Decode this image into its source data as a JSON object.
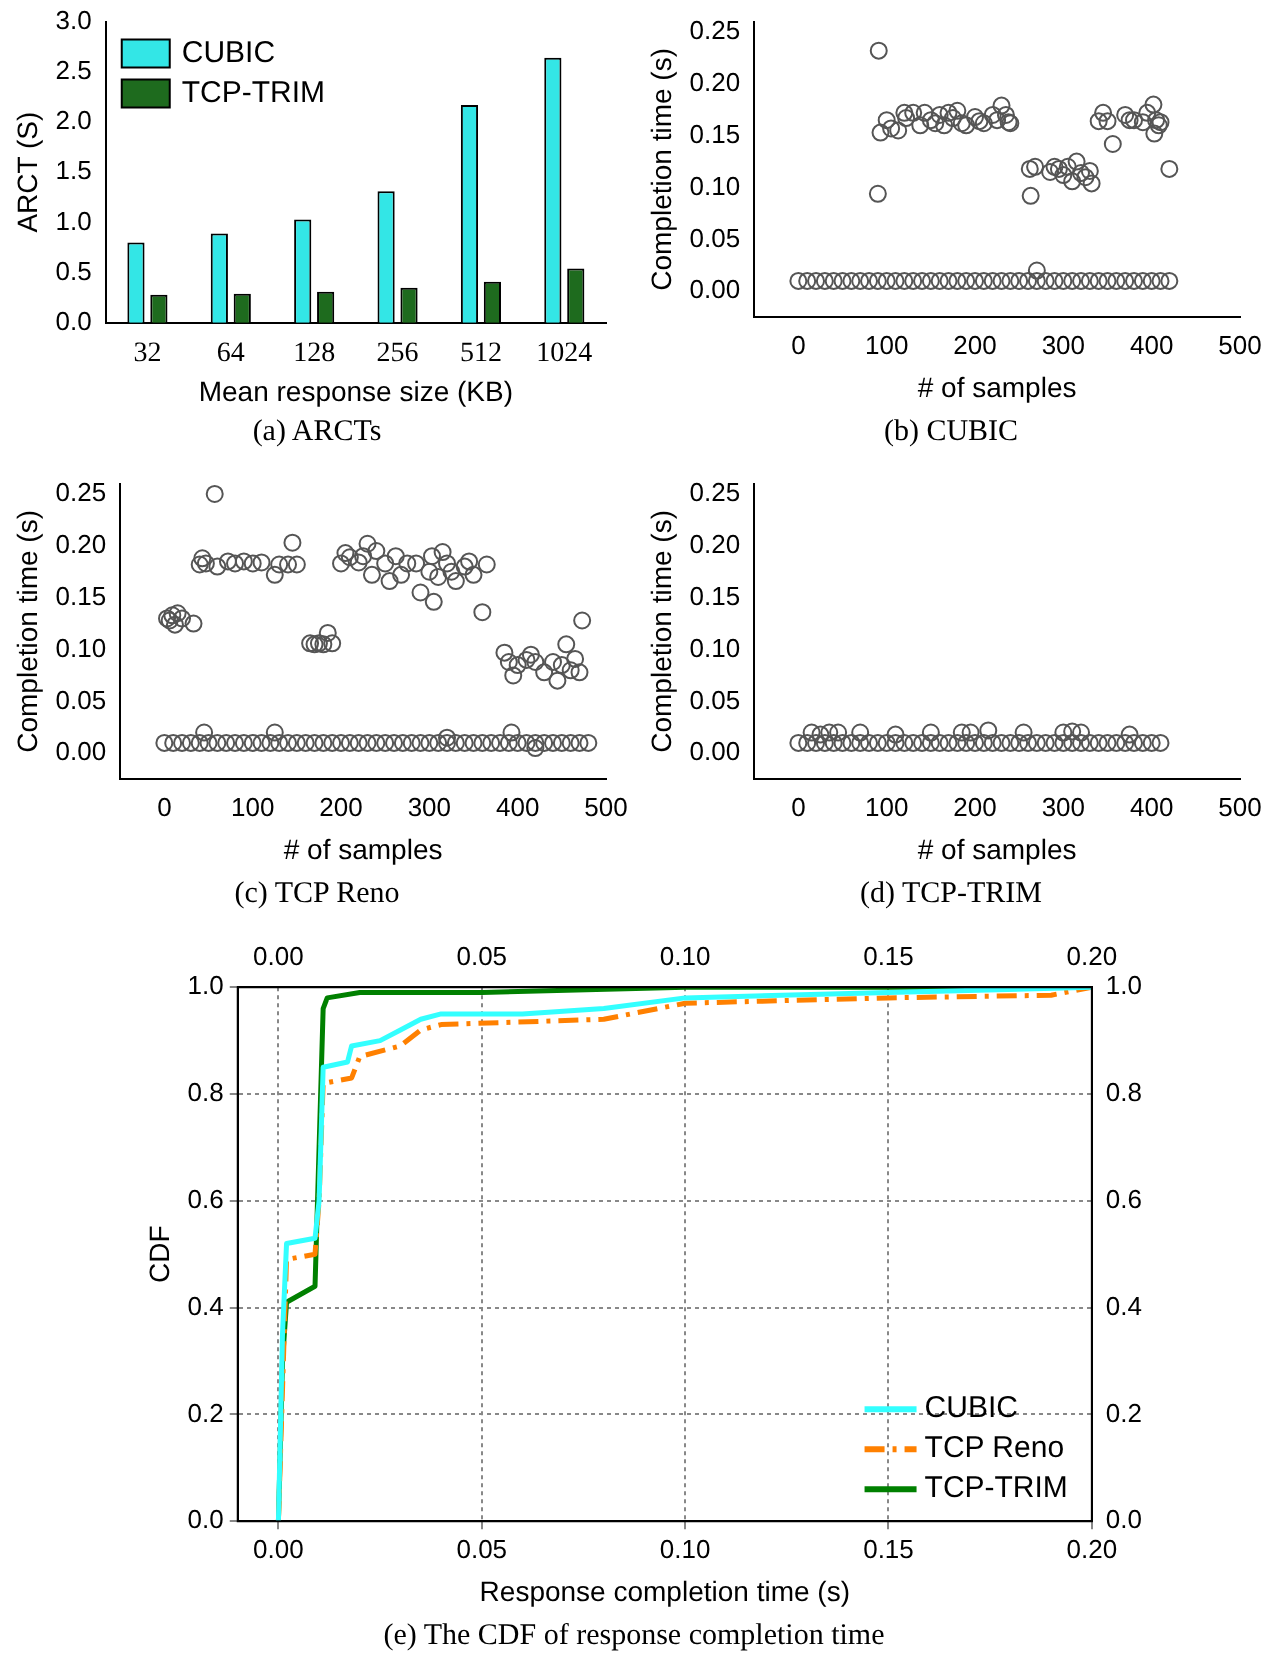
{
  "chart_data": [
    {
      "type": "bar",
      "categories": [
        "32",
        "64",
        "128",
        "256",
        "512",
        "1024"
      ],
      "xlabel": "Mean response size (KB)",
      "ylabel": "ARCT (S)",
      "ylim": [
        0,
        3
      ],
      "yticks": [
        {
          "value": 0,
          "label": "0.0"
        },
        0.5,
        {
          "value": 1,
          "label": "1.0"
        },
        1.5,
        {
          "value": 2,
          "label": "2.0"
        },
        2.5,
        {
          "value": 3,
          "label": "3.0"
        }
      ],
      "legend": "top left",
      "annotations": [
        "(a)  ARCTs"
      ],
      "series": [
        {
          "name": "CUBIC",
          "color": "#33e6e6",
          "values": [
            0.8,
            0.89,
            1.03,
            1.31,
            2.17,
            2.64
          ]
        },
        {
          "name": "TCP-TRIM",
          "color": "#1e6b1e",
          "values": [
            0.28,
            0.29,
            0.31,
            0.35,
            0.41,
            0.54
          ]
        }
      ]
    },
    {
      "type": "scatter",
      "xlabel": "# of samples",
      "ylabel": "Completion time (s)",
      "xlim": [
        -50,
        500
      ],
      "xticks": [
        0,
        100,
        200,
        300,
        400,
        500
      ],
      "ylim": [
        -0.025,
        0.26
      ],
      "yticks": [
        {
          "value": 0,
          "label": "0.00"
        },
        0.05,
        {
          "value": 0.1,
          "label": "0.10"
        },
        0.15,
        {
          "value": 0.2,
          "label": "0.20"
        },
        0.25
      ],
      "marker": "circle",
      "annotations": [
        "(b)  CUBIC"
      ],
      "series": [
        {
          "color": "#555555",
          "x": [
            0,
            10,
            20,
            30,
            40,
            50,
            60,
            70,
            80,
            90,
            100,
            110,
            120,
            130,
            140,
            150,
            160,
            170,
            180,
            190,
            200,
            210,
            220,
            230,
            240,
            250,
            260,
            270,
            280,
            290,
            300,
            310,
            320,
            330,
            340,
            350,
            360,
            370,
            380,
            390,
            400,
            410,
            420,
            91,
            90,
            93,
            100,
            105,
            113,
            120,
            122,
            130,
            138,
            143,
            150,
            155,
            160,
            165,
            170,
            175,
            180,
            185,
            190,
            200,
            205,
            210,
            220,
            225,
            230,
            235,
            238,
            240,
            262,
            263,
            268,
            270,
            285,
            290,
            295,
            300,
            305,
            310,
            315,
            320,
            325,
            330,
            332,
            340,
            345,
            350,
            356,
            370,
            375,
            380,
            390,
            395,
            402,
            403,
            405,
            408,
            410,
            420
          ],
          "values": [
            0.01,
            0.01,
            0.01,
            0.01,
            0.01,
            0.01,
            0.01,
            0.01,
            0.01,
            0.01,
            0.01,
            0.01,
            0.01,
            0.01,
            0.01,
            0.01,
            0.01,
            0.01,
            0.01,
            0.01,
            0.01,
            0.01,
            0.01,
            0.01,
            0.01,
            0.01,
            0.01,
            0.01,
            0.01,
            0.01,
            0.01,
            0.01,
            0.01,
            0.01,
            0.01,
            0.01,
            0.01,
            0.01,
            0.01,
            0.01,
            0.01,
            0.01,
            0.01,
            0.232,
            0.094,
            0.153,
            0.165,
            0.157,
            0.155,
            0.172,
            0.167,
            0.172,
            0.16,
            0.172,
            0.165,
            0.162,
            0.17,
            0.16,
            0.172,
            0.167,
            0.174,
            0.162,
            0.16,
            0.168,
            0.164,
            0.162,
            0.17,
            0.165,
            0.179,
            0.17,
            0.163,
            0.162,
            0.118,
            0.092,
            0.12,
            0.02,
            0.115,
            0.12,
            0.118,
            0.112,
            0.12,
            0.106,
            0.125,
            0.114,
            0.11,
            0.116,
            0.104,
            0.164,
            0.172,
            0.164,
            0.142,
            0.17,
            0.165,
            0.165,
            0.163,
            0.172,
            0.18,
            0.152,
            0.165,
            0.16,
            0.163,
            0.118
          ]
        }
      ]
    },
    {
      "type": "scatter",
      "xlabel": "# of samples",
      "ylabel": "Completion time (s)",
      "xlim": [
        -50,
        500
      ],
      "xticks": [
        0,
        100,
        200,
        300,
        400,
        500
      ],
      "ylim": [
        -0.025,
        0.26
      ],
      "yticks": [
        {
          "value": 0,
          "label": "0.00"
        },
        0.05,
        {
          "value": 0.1,
          "label": "0.10"
        },
        0.15,
        {
          "value": 0.2,
          "label": "0.20"
        },
        0.25
      ],
      "marker": "circle",
      "annotations": [
        "(c)  TCP Reno"
      ],
      "series": [
        {
          "color": "#555555",
          "x": [
            0,
            10,
            20,
            30,
            40,
            50,
            60,
            70,
            80,
            90,
            100,
            110,
            120,
            130,
            140,
            150,
            160,
            170,
            180,
            190,
            200,
            210,
            220,
            230,
            240,
            250,
            260,
            270,
            280,
            290,
            300,
            310,
            320,
            330,
            340,
            350,
            360,
            370,
            380,
            390,
            400,
            410,
            420,
            430,
            440,
            450,
            460,
            470,
            480,
            45,
            125,
            320,
            393,
            420,
            3,
            6,
            9,
            12,
            15,
            20,
            33,
            40,
            43,
            47,
            57,
            60,
            72,
            80,
            90,
            100,
            110,
            125,
            130,
            140,
            145,
            150,
            165,
            170,
            175,
            180,
            185,
            190,
            200,
            205,
            210,
            220,
            225,
            230,
            235,
            240,
            250,
            255,
            262,
            268,
            275,
            285,
            290,
            300,
            303,
            305,
            310,
            315,
            320,
            325,
            330,
            340,
            345,
            350,
            360,
            365,
            385,
            390,
            395,
            400,
            410,
            415,
            420,
            430,
            440,
            445,
            450,
            455,
            460,
            465,
            470,
            473
          ],
          "values": [
            0.01,
            0.01,
            0.01,
            0.01,
            0.01,
            0.01,
            0.01,
            0.01,
            0.01,
            0.01,
            0.01,
            0.01,
            0.01,
            0.01,
            0.01,
            0.01,
            0.01,
            0.01,
            0.01,
            0.01,
            0.01,
            0.01,
            0.01,
            0.01,
            0.01,
            0.01,
            0.01,
            0.01,
            0.01,
            0.01,
            0.01,
            0.01,
            0.01,
            0.01,
            0.01,
            0.01,
            0.01,
            0.01,
            0.01,
            0.01,
            0.01,
            0.01,
            0.01,
            0.01,
            0.01,
            0.01,
            0.01,
            0.01,
            0.01,
            0.02,
            0.02,
            0.015,
            0.02,
            0.005,
            0.13,
            0.128,
            0.133,
            0.124,
            0.135,
            0.13,
            0.125,
            0.182,
            0.188,
            0.183,
            0.25,
            0.18,
            0.185,
            0.183,
            0.185,
            0.183,
            0.184,
            0.172,
            0.182,
            0.182,
            0.203,
            0.182,
            0.106,
            0.105,
            0.106,
            0.105,
            0.116,
            0.106,
            0.183,
            0.193,
            0.189,
            0.184,
            0.19,
            0.202,
            0.172,
            0.195,
            0.183,
            0.166,
            0.19,
            0.172,
            0.183,
            0.183,
            0.155,
            0.175,
            0.19,
            0.146,
            0.17,
            0.194,
            0.183,
            0.175,
            0.166,
            0.18,
            0.185,
            0.172,
            0.136,
            0.182,
            0.097,
            0.088,
            0.075,
            0.085,
            0.09,
            0.095,
            0.088,
            0.078,
            0.088,
            0.07,
            0.085,
            0.105,
            0.08,
            0.091,
            0.078,
            0.128
          ]
        }
      ]
    },
    {
      "type": "scatter",
      "xlabel": "# of samples",
      "ylabel": "Completion time (s)",
      "xlim": [
        -50,
        500
      ],
      "xticks": [
        0,
        100,
        200,
        300,
        400,
        500
      ],
      "ylim": [
        -0.025,
        0.26
      ],
      "yticks": [
        {
          "value": 0,
          "label": "0.00"
        },
        0.05,
        {
          "value": 0.1,
          "label": "0.10"
        },
        0.15,
        {
          "value": 0.2,
          "label": "0.20"
        },
        0.25
      ],
      "marker": "circle",
      "annotations": [
        "(d)  TCP-TRIM"
      ],
      "series": [
        {
          "color": "#555555",
          "x": [
            0,
            10,
            20,
            30,
            40,
            50,
            60,
            70,
            80,
            90,
            100,
            110,
            120,
            130,
            140,
            150,
            160,
            170,
            180,
            190,
            200,
            210,
            220,
            230,
            240,
            250,
            260,
            270,
            280,
            290,
            300,
            310,
            320,
            330,
            340,
            350,
            360,
            370,
            380,
            390,
            400,
            410,
            15,
            25,
            35,
            45,
            70,
            110,
            150,
            185,
            195,
            215,
            255,
            300,
            310,
            320,
            375
          ],
          "values": [
            0.01,
            0.01,
            0.01,
            0.01,
            0.01,
            0.01,
            0.01,
            0.01,
            0.01,
            0.01,
            0.01,
            0.01,
            0.01,
            0.01,
            0.01,
            0.01,
            0.01,
            0.01,
            0.01,
            0.01,
            0.01,
            0.01,
            0.01,
            0.01,
            0.01,
            0.01,
            0.01,
            0.01,
            0.01,
            0.01,
            0.01,
            0.01,
            0.01,
            0.01,
            0.01,
            0.01,
            0.01,
            0.01,
            0.01,
            0.01,
            0.01,
            0.01,
            0.02,
            0.018,
            0.02,
            0.02,
            0.02,
            0.018,
            0.02,
            0.02,
            0.02,
            0.022,
            0.02,
            0.02,
            0.021,
            0.02,
            0.018
          ]
        }
      ]
    },
    {
      "type": "line",
      "xlabel": "Response completion time (s)",
      "ylabel": "CDF",
      "xlim": [
        -0.01,
        0.2
      ],
      "xticks": [
        {
          "value": 0,
          "label": "0.00"
        },
        0.05,
        {
          "value": 0.1,
          "label": "0.10"
        },
        0.15,
        {
          "value": 0.2,
          "label": "0.20"
        }
      ],
      "x2lim": [
        -0.01,
        0.2
      ],
      "x2ticks": [
        {
          "value": 0,
          "label": "0.00"
        },
        0.05,
        {
          "value": 0.1,
          "label": "0.10"
        },
        0.15,
        {
          "value": 0.2,
          "label": "0.20"
        }
      ],
      "ylim": [
        0,
        1
      ],
      "yticks": [
        {
          "value": 0,
          "label": "0.0"
        },
        0.2,
        0.4,
        0.6,
        0.8,
        {
          "value": 1,
          "label": "1.0"
        }
      ],
      "y2lim": [
        0,
        1
      ],
      "y2ticks": [
        {
          "value": 0,
          "label": "0.0"
        },
        0.2,
        0.4,
        0.6,
        0.8,
        {
          "value": 1,
          "label": "1.0"
        }
      ],
      "grid": true,
      "legend": "bottom right",
      "marker": "none",
      "annotations": [
        "(e)  The CDF of response completion time"
      ],
      "series": [
        {
          "name": "CUBIC",
          "color": "#33ffff",
          "line_style": "solid",
          "x": [
            0,
            0.001,
            0.002,
            0.009,
            0.01,
            0.011,
            0.017,
            0.018,
            0.025,
            0.03,
            0.035,
            0.04,
            0.06,
            0.08,
            0.1,
            0.15,
            0.2
          ],
          "values": [
            0,
            0.35,
            0.52,
            0.53,
            0.6,
            0.85,
            0.86,
            0.89,
            0.9,
            0.92,
            0.94,
            0.95,
            0.95,
            0.96,
            0.98,
            0.99,
            1
          ]
        },
        {
          "name": "TCP Reno",
          "color": "#ff8000",
          "line_style": "dashed",
          "x": [
            0,
            0.002,
            0.009,
            0.01,
            0.011,
            0.018,
            0.02,
            0.03,
            0.035,
            0.04,
            0.08,
            0.1,
            0.15,
            0.19,
            0.2
          ],
          "values": [
            0,
            0.49,
            0.5,
            0.6,
            0.82,
            0.83,
            0.87,
            0.89,
            0.92,
            0.93,
            0.94,
            0.97,
            0.98,
            0.985,
            1
          ]
        },
        {
          "name": "TCP-TRIM",
          "color": "#008000",
          "line_style": "solid",
          "x": [
            0,
            0.001,
            0.002,
            0.009,
            0.011,
            0.012,
            0.02,
            0.05,
            0.1,
            0.2
          ],
          "values": [
            0,
            0.3,
            0.41,
            0.44,
            0.96,
            0.98,
            0.99,
            0.99,
            1,
            1
          ]
        }
      ]
    }
  ]
}
